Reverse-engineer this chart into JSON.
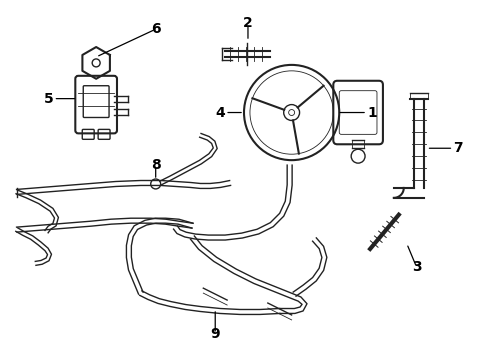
{
  "background_color": "#ffffff",
  "line_color": "#222222",
  "label_color": "#000000",
  "figsize": [
    4.89,
    3.6
  ],
  "dpi": 100
}
